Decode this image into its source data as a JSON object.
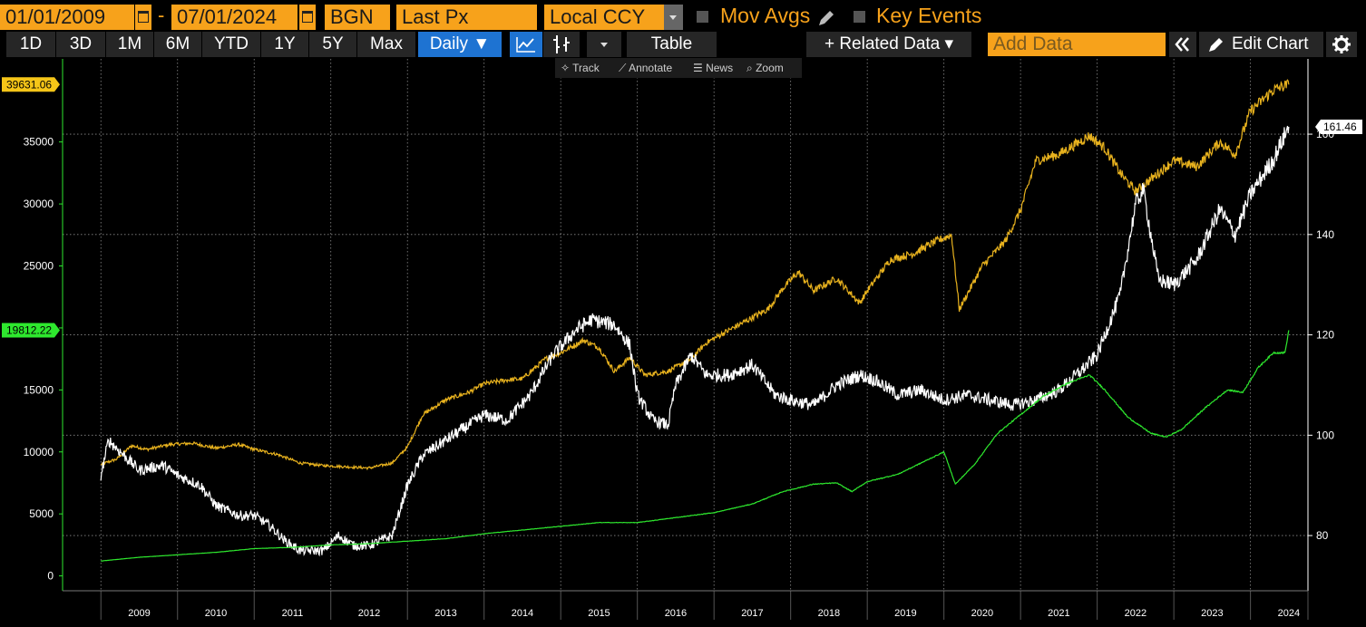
{
  "toolbar": {
    "start_date": "01/01/2009",
    "date_separator": "-",
    "end_date": "07/01/2024",
    "source": "BGN",
    "field": "Last Px",
    "currency": "Local CCY",
    "mov_avgs_label": "Mov Avgs",
    "key_events_label": "Key Events"
  },
  "periods": [
    "1D",
    "3D",
    "1M",
    "6M",
    "YTD",
    "1Y",
    "5Y",
    "Max"
  ],
  "frequency": "Daily ▼",
  "table_label": "Table",
  "related_data_label": "+ Related Data ▾",
  "add_data_placeholder": "Add Data",
  "edit_chart_label": "Edit Chart",
  "chart_tools": {
    "track": "Track",
    "annotate": "Annotate",
    "news": "News",
    "zoom": "Zoom"
  },
  "chart_data": {
    "type": "line",
    "x_labels": [
      "2009",
      "2010",
      "2011",
      "2012",
      "2013",
      "2014",
      "2015",
      "2016",
      "2017",
      "2018",
      "2019",
      "2020",
      "2021",
      "2022",
      "2023",
      "2024"
    ],
    "left_axis": {
      "ticks": [
        0,
        5000,
        10000,
        15000,
        20000,
        25000,
        30000,
        35000
      ],
      "range": [
        -1200,
        41700
      ]
    },
    "right_axis": {
      "ticks": [
        80,
        100,
        120,
        140,
        160
      ],
      "range": [
        69,
        175
      ]
    },
    "last_value_tags": {
      "yellow": "39631.06",
      "green": "19812.22",
      "white": "161.46"
    },
    "colors": {
      "yellow": "#e8b21e",
      "green": "#2ee82e",
      "white": "#ffffff",
      "tag_yellow": "#f5c518",
      "tag_green": "#2ee82e"
    },
    "series": [
      {
        "color_key": "yellow",
        "axis": "left",
        "points": [
          [
            2009.0,
            9000
          ],
          [
            2009.2,
            9400
          ],
          [
            2009.4,
            10500
          ],
          [
            2009.6,
            10200
          ],
          [
            2009.9,
            10600
          ],
          [
            2010.2,
            10700
          ],
          [
            2010.5,
            10300
          ],
          [
            2010.8,
            10600
          ],
          [
            2011.0,
            10200
          ],
          [
            2011.3,
            9800
          ],
          [
            2011.6,
            9100
          ],
          [
            2011.9,
            8900
          ],
          [
            2012.2,
            8800
          ],
          [
            2012.5,
            8700
          ],
          [
            2012.8,
            9100
          ],
          [
            2013.0,
            10400
          ],
          [
            2013.2,
            13000
          ],
          [
            2013.5,
            14200
          ],
          [
            2013.8,
            14800
          ],
          [
            2014.0,
            15500
          ],
          [
            2014.3,
            15800
          ],
          [
            2014.5,
            15900
          ],
          [
            2014.8,
            17500
          ],
          [
            2015.0,
            18000
          ],
          [
            2015.3,
            19000
          ],
          [
            2015.5,
            18400
          ],
          [
            2015.7,
            16500
          ],
          [
            2015.9,
            17600
          ],
          [
            2016.1,
            16200
          ],
          [
            2016.4,
            16500
          ],
          [
            2016.7,
            17500
          ],
          [
            2016.9,
            18800
          ],
          [
            2017.1,
            19500
          ],
          [
            2017.4,
            20500
          ],
          [
            2017.7,
            21500
          ],
          [
            2017.9,
            23200
          ],
          [
            2018.1,
            24500
          ],
          [
            2018.3,
            23000
          ],
          [
            2018.6,
            24000
          ],
          [
            2018.9,
            22000
          ],
          [
            2019.0,
            23000
          ],
          [
            2019.3,
            25500
          ],
          [
            2019.6,
            26000
          ],
          [
            2019.9,
            27000
          ],
          [
            2020.1,
            27500
          ],
          [
            2020.2,
            21500
          ],
          [
            2020.5,
            25000
          ],
          [
            2020.8,
            27000
          ],
          [
            2021.0,
            29500
          ],
          [
            2021.2,
            33500
          ],
          [
            2021.5,
            34000
          ],
          [
            2021.9,
            35500
          ],
          [
            2022.1,
            34500
          ],
          [
            2022.3,
            32500
          ],
          [
            2022.5,
            31000
          ],
          [
            2022.8,
            32500
          ],
          [
            2023.0,
            33500
          ],
          [
            2023.3,
            33000
          ],
          [
            2023.6,
            35000
          ],
          [
            2023.8,
            34000
          ],
          [
            2024.0,
            37500
          ],
          [
            2024.3,
            39200
          ],
          [
            2024.5,
            39631
          ]
        ]
      },
      {
        "color_key": "white",
        "axis": "right",
        "points": [
          [
            2009.0,
            92
          ],
          [
            2009.1,
            99
          ],
          [
            2009.3,
            96
          ],
          [
            2009.5,
            93
          ],
          [
            2009.8,
            94
          ],
          [
            2010.0,
            92
          ],
          [
            2010.3,
            90
          ],
          [
            2010.5,
            86
          ],
          [
            2010.8,
            84
          ],
          [
            2011.0,
            84
          ],
          [
            2011.2,
            82
          ],
          [
            2011.4,
            79
          ],
          [
            2011.6,
            77
          ],
          [
            2011.9,
            77
          ],
          [
            2012.1,
            80
          ],
          [
            2012.3,
            78
          ],
          [
            2012.5,
            78
          ],
          [
            2012.8,
            80
          ],
          [
            2013.0,
            90
          ],
          [
            2013.2,
            96
          ],
          [
            2013.4,
            98
          ],
          [
            2013.7,
            101
          ],
          [
            2014.0,
            104
          ],
          [
            2014.3,
            103
          ],
          [
            2014.6,
            108
          ],
          [
            2014.9,
            116
          ],
          [
            2015.2,
            121
          ],
          [
            2015.4,
            123
          ],
          [
            2015.7,
            122
          ],
          [
            2015.9,
            118
          ],
          [
            2016.0,
            108
          ],
          [
            2016.2,
            103
          ],
          [
            2016.4,
            102
          ],
          [
            2016.5,
            110
          ],
          [
            2016.7,
            116
          ],
          [
            2016.9,
            112
          ],
          [
            2017.2,
            112
          ],
          [
            2017.5,
            114
          ],
          [
            2017.8,
            108
          ],
          [
            2018.0,
            107
          ],
          [
            2018.3,
            106
          ],
          [
            2018.6,
            110
          ],
          [
            2018.9,
            112
          ],
          [
            2019.1,
            111
          ],
          [
            2019.4,
            108
          ],
          [
            2019.7,
            109
          ],
          [
            2020.0,
            107
          ],
          [
            2020.3,
            108
          ],
          [
            2020.6,
            107
          ],
          [
            2020.9,
            106
          ],
          [
            2021.2,
            107
          ],
          [
            2021.5,
            109
          ],
          [
            2021.8,
            113
          ],
          [
            2022.0,
            116
          ],
          [
            2022.3,
            128
          ],
          [
            2022.5,
            146
          ],
          [
            2022.6,
            149
          ],
          [
            2022.8,
            131
          ],
          [
            2023.0,
            130
          ],
          [
            2023.3,
            135
          ],
          [
            2023.6,
            145
          ],
          [
            2023.8,
            140
          ],
          [
            2024.0,
            148
          ],
          [
            2024.3,
            155
          ],
          [
            2024.5,
            161.46
          ]
        ]
      },
      {
        "color_key": "green",
        "axis": "left",
        "points": [
          [
            2009.0,
            1200
          ],
          [
            2009.5,
            1500
          ],
          [
            2010.0,
            1700
          ],
          [
            2010.5,
            1900
          ],
          [
            2011.0,
            2200
          ],
          [
            2011.5,
            2300
          ],
          [
            2012.0,
            2500
          ],
          [
            2012.5,
            2600
          ],
          [
            2013.0,
            2800
          ],
          [
            2013.5,
            3000
          ],
          [
            2014.0,
            3400
          ],
          [
            2014.5,
            3700
          ],
          [
            2015.0,
            4000
          ],
          [
            2015.5,
            4300
          ],
          [
            2016.0,
            4300
          ],
          [
            2016.5,
            4700
          ],
          [
            2017.0,
            5100
          ],
          [
            2017.5,
            5800
          ],
          [
            2017.9,
            6800
          ],
          [
            2018.3,
            7400
          ],
          [
            2018.6,
            7500
          ],
          [
            2018.8,
            6800
          ],
          [
            2019.0,
            7600
          ],
          [
            2019.4,
            8200
          ],
          [
            2019.8,
            9400
          ],
          [
            2020.0,
            10000
          ],
          [
            2020.15,
            7400
          ],
          [
            2020.4,
            9000
          ],
          [
            2020.7,
            11500
          ],
          [
            2021.0,
            13000
          ],
          [
            2021.3,
            14500
          ],
          [
            2021.6,
            15500
          ],
          [
            2021.9,
            16200
          ],
          [
            2022.1,
            15000
          ],
          [
            2022.4,
            12800
          ],
          [
            2022.7,
            11500
          ],
          [
            2022.9,
            11200
          ],
          [
            2023.1,
            11800
          ],
          [
            2023.4,
            13500
          ],
          [
            2023.7,
            15000
          ],
          [
            2023.9,
            14800
          ],
          [
            2024.1,
            16800
          ],
          [
            2024.3,
            18000
          ],
          [
            2024.45,
            18000
          ],
          [
            2024.5,
            19812
          ]
        ]
      }
    ]
  }
}
